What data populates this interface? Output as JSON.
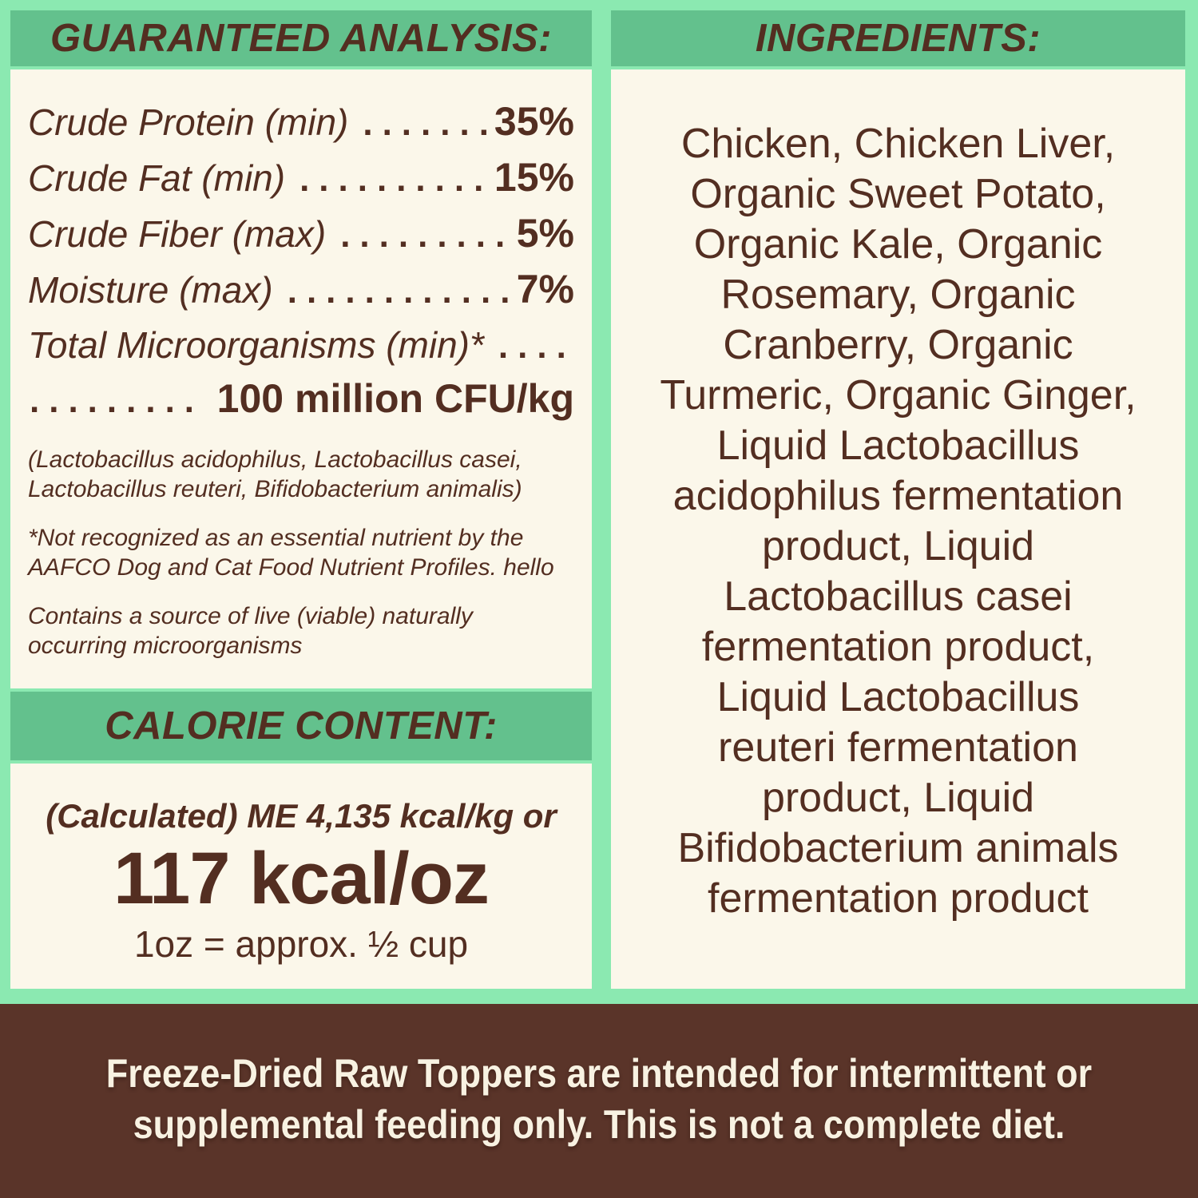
{
  "palette": {
    "background_green": "#8BE9B1",
    "header_band_green": "#63C18D",
    "panel_cream": "#FBF7EA",
    "text_brown": "#532E21",
    "footer_brown": "#5A3429",
    "footer_text_cream": "#F8F2E2"
  },
  "guaranteed_analysis": {
    "title": "GUARANTEED ANALYSIS:",
    "rows": [
      {
        "label": "Crude Protein (min)",
        "value": "35%"
      },
      {
        "label": "Crude Fat (min)",
        "value": "15%"
      },
      {
        "label": "Crude Fiber (max)",
        "value": "5%"
      },
      {
        "label": "Moisture (max)",
        "value": "7%"
      }
    ],
    "microorganisms_label": "Total Microorganisms (min)*",
    "microorganisms_value": "100 million CFU/kg",
    "footnotes": [
      {
        "lines": [
          "(Lactobacillus acidophilus, Lactobacillus casei,",
          "Lactobacillus reuteri, Bifidobacterium animalis)"
        ]
      },
      {
        "lines": [
          "*Not recognized as an essential nutrient by the",
          "AAFCO Dog and Cat Food Nutrient Profiles. hello"
        ]
      },
      {
        "lines": [
          "Contains a source of live (viable) naturally",
          "occurring microorganisms"
        ]
      }
    ]
  },
  "calorie_content": {
    "title": "CALORIE CONTENT:",
    "line1": "(Calculated) ME 4,135 kcal/kg or",
    "line2": "117 kcal/oz",
    "line3": "1oz = approx. ½ cup"
  },
  "ingredients": {
    "title": "INGREDIENTS:",
    "lines": [
      "Chicken, Chicken Liver,",
      "Organic Sweet Potato,",
      "Organic Kale, Organic",
      "Rosemary, Organic",
      "Cranberry, Organic",
      "Turmeric, Organic Ginger,",
      "Liquid Lactobacillus",
      "acidophilus fermentation",
      "product, Liquid",
      "Lactobacillus casei",
      "fermentation product,",
      "Liquid Lactobacillus",
      "reuteri fermentation",
      "product, Liquid",
      "Bifidobacterium animals",
      "fermentation product"
    ]
  },
  "footer": {
    "lines": [
      "Freeze-Dried Raw Toppers are intended for intermittent or",
      "supplemental feeding only. This is not a complete diet."
    ]
  }
}
